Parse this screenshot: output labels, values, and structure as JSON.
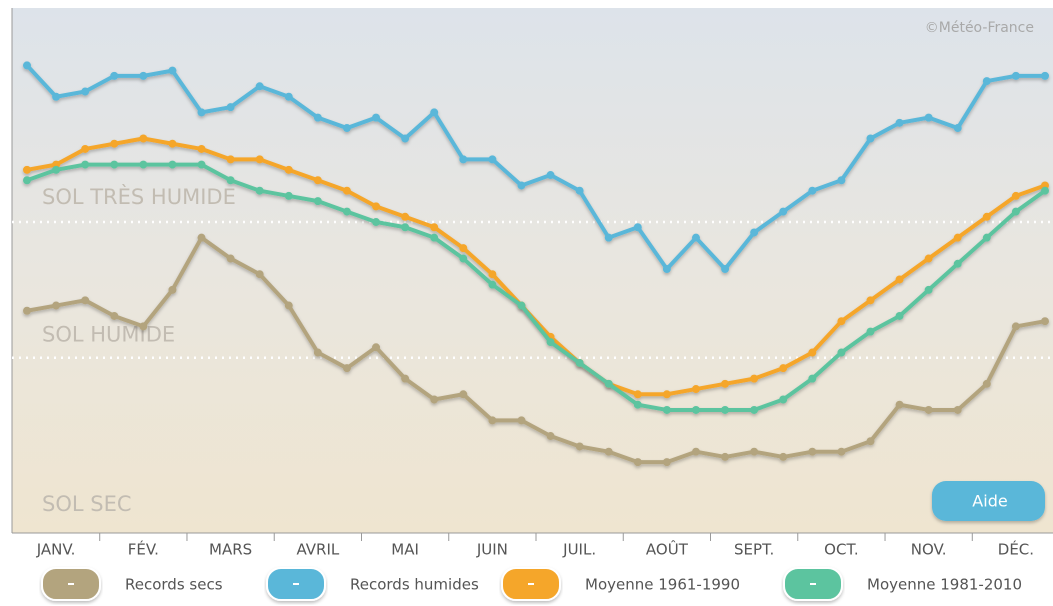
{
  "chart_data": {
    "type": "line",
    "source": "©Météo-France",
    "button": "Aide",
    "zones": [
      {
        "label": "SOL TRÈS HUMIDE"
      },
      {
        "label": "SOL HUMIDE"
      },
      {
        "label": "SOL SEC"
      }
    ],
    "thresholds": [
      59,
      33
    ],
    "categories": [
      null,
      "JANV.",
      null,
      null,
      "FÉV.",
      null,
      null,
      "MARS",
      null,
      null,
      "AVRIL",
      null,
      null,
      "MAI",
      null,
      null,
      "JUIN",
      null,
      null,
      "JUIL.",
      null,
      null,
      "AOÛT",
      null,
      null,
      "SEPT.",
      null,
      null,
      "OCT.",
      null,
      null,
      "NOV.",
      null,
      null,
      "DÉC.",
      null
    ],
    "ylim": [
      0,
      100
    ],
    "series": [
      {
        "name": "Records secs",
        "color": "#b3a47e",
        "values": [
          42,
          43,
          44,
          41,
          39,
          46,
          56,
          52,
          49,
          43,
          34,
          31,
          35,
          29,
          25,
          26,
          21,
          21,
          18,
          16,
          15,
          13,
          13,
          15,
          14,
          15,
          14,
          15,
          15,
          17,
          24,
          23,
          23,
          28,
          39,
          40
        ]
      },
      {
        "name": "Records humides",
        "color": "#5ab7d9",
        "values": [
          89,
          83,
          84,
          87,
          87,
          88,
          80,
          81,
          85,
          83,
          79,
          77,
          79,
          75,
          80,
          71,
          71,
          66,
          68,
          65,
          56,
          58,
          50,
          56,
          50,
          57,
          61,
          65,
          67,
          75,
          78,
          79,
          77,
          86,
          87,
          87
        ]
      },
      {
        "name": "Moyenne 1961-1990",
        "color": "#f5a62a",
        "values": [
          69,
          70,
          73,
          74,
          75,
          74,
          73,
          71,
          71,
          69,
          67,
          65,
          62,
          60,
          58,
          54,
          49,
          43,
          37,
          32,
          28,
          26,
          26,
          27,
          28,
          29,
          31,
          34,
          40,
          44,
          48,
          52,
          56,
          60,
          64,
          66
        ]
      },
      {
        "name": "Moyenne 1981-2010",
        "color": "#5cc49f",
        "values": [
          67,
          69,
          70,
          70,
          70,
          70,
          70,
          67,
          65,
          64,
          63,
          61,
          59,
          58,
          56,
          52,
          47,
          43,
          36,
          32,
          28,
          24,
          23,
          23,
          23,
          23,
          25,
          29,
          34,
          38,
          41,
          46,
          51,
          56,
          61,
          65
        ]
      }
    ]
  }
}
